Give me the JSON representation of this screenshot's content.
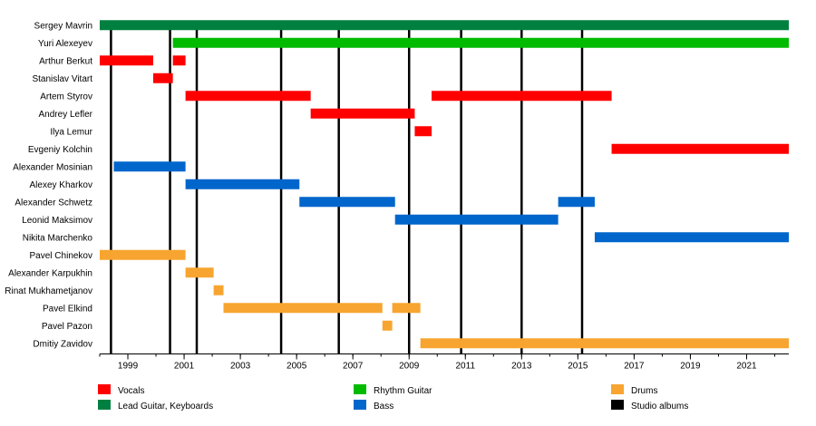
{
  "chart_data": {
    "type": "timeline",
    "xlim": [
      1998.0,
      2022.5
    ],
    "x_ticks": [
      1999,
      2001,
      2003,
      2005,
      2007,
      2009,
      2011,
      2013,
      2015,
      2017,
      2019,
      2021
    ],
    "x_tick_labels": [
      "1999",
      "2001",
      "2003",
      "2005",
      "2007",
      "2009",
      "2011",
      "2013",
      "2015",
      "2017",
      "2019",
      "2021"
    ],
    "grid": false,
    "legend_position": "bottom",
    "colors": {
      "vocals": "#ff0000",
      "lead": "#008040",
      "rhythm": "#00bb00",
      "bass": "#0066cc",
      "drums": "#f7a530",
      "album": "#000000"
    },
    "legend": [
      {
        "key": "vocals",
        "label": "Vocals"
      },
      {
        "key": "rhythm",
        "label": "Rhythm Guitar"
      },
      {
        "key": "drums",
        "label": "Drums"
      },
      {
        "key": "lead",
        "label": "Lead Guitar, Keyboards"
      },
      {
        "key": "bass",
        "label": "Bass"
      },
      {
        "key": "album",
        "label": "Studio albums"
      }
    ],
    "studio_albums": [
      1998.4,
      2000.5,
      2001.45,
      2004.45,
      2006.5,
      2009.0,
      2010.85,
      2013.0,
      2015.15
    ],
    "members": [
      {
        "name": "Sergey Mavrin",
        "periods": [
          {
            "role": "lead",
            "start": 1998.0,
            "end": 2022.5
          }
        ]
      },
      {
        "name": "Yuri Alexeyev",
        "periods": [
          {
            "role": "rhythm",
            "start": 2000.6,
            "end": 2022.5
          }
        ]
      },
      {
        "name": "Arthur Berkut",
        "periods": [
          {
            "role": "vocals",
            "start": 1998.0,
            "end": 1999.9
          },
          {
            "role": "vocals",
            "start": 2000.6,
            "end": 2001.05
          }
        ]
      },
      {
        "name": "Stanislav Vitart",
        "periods": [
          {
            "role": "vocals",
            "start": 1999.9,
            "end": 2000.6
          }
        ]
      },
      {
        "name": "Artem Styrov",
        "periods": [
          {
            "role": "vocals",
            "start": 2001.05,
            "end": 2005.5
          },
          {
            "role": "vocals",
            "start": 2009.8,
            "end": 2016.2
          }
        ]
      },
      {
        "name": "Andrey Lefler",
        "periods": [
          {
            "role": "vocals",
            "start": 2005.5,
            "end": 2009.2
          }
        ]
      },
      {
        "name": "Ilya Lemur",
        "periods": [
          {
            "role": "vocals",
            "start": 2009.2,
            "end": 2009.8
          }
        ]
      },
      {
        "name": "Evgeniy Kolchin",
        "periods": [
          {
            "role": "vocals",
            "start": 2016.2,
            "end": 2022.5
          }
        ]
      },
      {
        "name": "Alexander Mosinian",
        "periods": [
          {
            "role": "bass",
            "start": 1998.5,
            "end": 2001.05
          }
        ]
      },
      {
        "name": "Alexey Kharkov",
        "periods": [
          {
            "role": "bass",
            "start": 2001.05,
            "end": 2005.1
          }
        ]
      },
      {
        "name": "Alexander Schwetz",
        "periods": [
          {
            "role": "bass",
            "start": 2005.1,
            "end": 2008.5
          },
          {
            "role": "bass",
            "start": 2014.3,
            "end": 2015.6
          }
        ]
      },
      {
        "name": "Leonid Maksimov",
        "periods": [
          {
            "role": "bass",
            "start": 2008.5,
            "end": 2014.3
          }
        ]
      },
      {
        "name": "Nikita Marchenko",
        "periods": [
          {
            "role": "bass",
            "start": 2015.6,
            "end": 2022.5
          }
        ]
      },
      {
        "name": "Pavel Chinekov",
        "periods": [
          {
            "role": "drums",
            "start": 1998.0,
            "end": 2001.05
          }
        ]
      },
      {
        "name": "Alexander Karpukhin",
        "periods": [
          {
            "role": "drums",
            "start": 2001.05,
            "end": 2002.05
          }
        ]
      },
      {
        "name": "Rinat Mukhametjanov",
        "periods": [
          {
            "role": "drums",
            "start": 2002.05,
            "end": 2002.4
          }
        ]
      },
      {
        "name": "Pavel Elkind",
        "periods": [
          {
            "role": "drums",
            "start": 2002.4,
            "end": 2008.05
          },
          {
            "role": "drums",
            "start": 2008.4,
            "end": 2009.4
          }
        ]
      },
      {
        "name": "Pavel Pazon",
        "periods": [
          {
            "role": "drums",
            "start": 2008.05,
            "end": 2008.4
          }
        ]
      },
      {
        "name": "Dmitiy Zavidov",
        "periods": [
          {
            "role": "drums",
            "start": 2009.4,
            "end": 2022.5
          }
        ]
      }
    ]
  }
}
